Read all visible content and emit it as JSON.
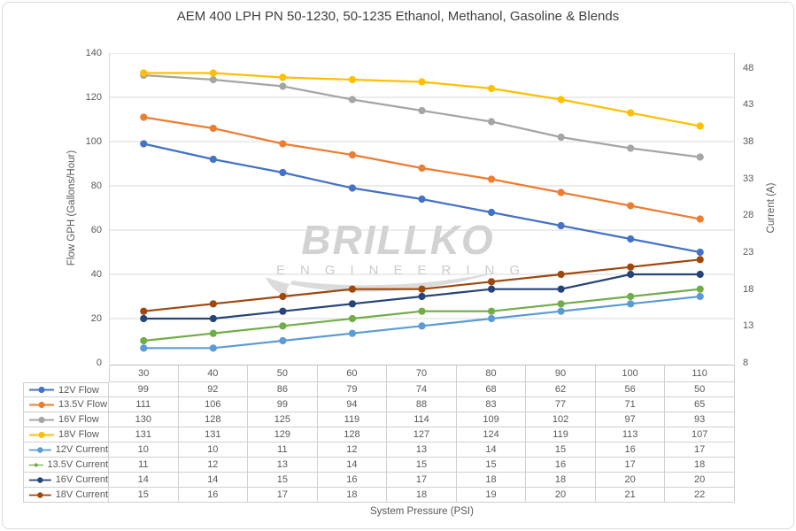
{
  "watermark": {
    "line1": "BRILLKO",
    "line2": "ENGINEERING"
  },
  "chart_data": {
    "type": "line",
    "title": "AEM 400 LPH PN 50-1230, 50-1235 Ethanol, Methanol, Gasoline & Blends",
    "xlabel": "System Pressure (PSI)",
    "ylabel_left": "Flow GPH (Gallons/Hour)",
    "ylabel_right": "Current (A)",
    "categories": [
      30,
      40,
      50,
      60,
      70,
      80,
      90,
      100,
      110
    ],
    "y_left_ticks": [
      0,
      20,
      40,
      60,
      80,
      100,
      120,
      140
    ],
    "y_left_range": [
      0,
      140
    ],
    "y_right_ticks": [
      8,
      13,
      18,
      23,
      28,
      33,
      38,
      43,
      48
    ],
    "y_right_range": [
      8,
      50
    ],
    "grid": "horizontal-major",
    "legend_position": "data-table-left",
    "colors": {
      "grid": "#d9d9d9",
      "axis_text": "#595959",
      "table_border": "#d0d0d0",
      "title_text": "#404040",
      "watermark": "#d2d2d2"
    },
    "series": [
      {
        "name": "12V Flow",
        "axis": "left",
        "color": "#4472C4",
        "values": [
          99,
          92,
          86,
          79,
          74,
          68,
          62,
          56,
          50
        ]
      },
      {
        "name": "13.5V Flow",
        "axis": "left",
        "color": "#ED7D31",
        "values": [
          111,
          106,
          99,
          94,
          88,
          83,
          77,
          71,
          65
        ]
      },
      {
        "name": "16V Flow",
        "axis": "left",
        "color": "#A5A5A5",
        "values": [
          130,
          128,
          125,
          119,
          114,
          109,
          102,
          97,
          93
        ]
      },
      {
        "name": "18V Flow",
        "axis": "left",
        "color": "#FFC000",
        "values": [
          131,
          131,
          129,
          128,
          127,
          124,
          119,
          113,
          107
        ]
      },
      {
        "name": "12V Current",
        "axis": "right",
        "color": "#5B9BD5",
        "values": [
          10,
          10,
          11,
          12,
          13,
          14,
          15,
          16,
          17
        ]
      },
      {
        "name": "13.5V Current",
        "axis": "right",
        "color": "#70AD47",
        "values": [
          11,
          12,
          13,
          14,
          15,
          15,
          16,
          17,
          18
        ]
      },
      {
        "name": "16V Current",
        "axis": "right",
        "color": "#264478",
        "values": [
          14,
          14,
          15,
          16,
          17,
          18,
          18,
          20,
          20
        ]
      },
      {
        "name": "18V Current",
        "axis": "right",
        "color": "#9E480E",
        "values": [
          15,
          16,
          17,
          18,
          18,
          19,
          20,
          21,
          22
        ]
      }
    ]
  }
}
